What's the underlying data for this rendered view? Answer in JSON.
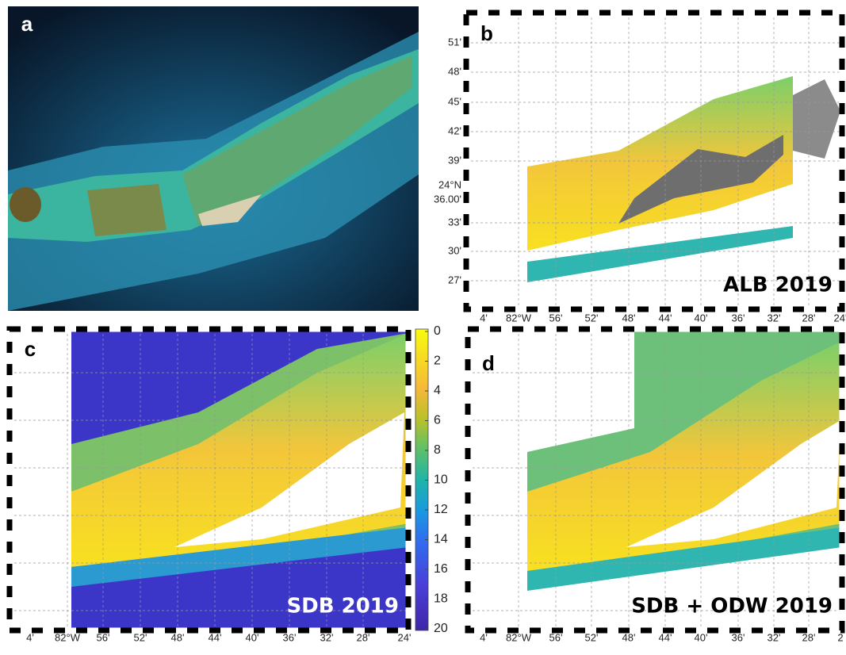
{
  "panels": [
    {
      "label": "a"
    },
    {
      "label": "b",
      "caption": "ALB 2019",
      "y_ticks": [
        "51'",
        "48'",
        "45'",
        "42'",
        "39'",
        "33'",
        "30'",
        "27'"
      ],
      "center_lat": [
        "24°N",
        "36.00'"
      ],
      "x_ticks": [
        "4'",
        "82°W",
        "56'",
        "52'",
        "48'",
        "44'",
        "40'",
        "36'",
        "32'",
        "28'",
        "24'"
      ]
    },
    {
      "label": "c",
      "caption": "SDB 2019",
      "x_ticks": [
        "4'",
        "82°W",
        "56'",
        "52'",
        "48'",
        "44'",
        "40'",
        "36'",
        "32'",
        "28'",
        "24'"
      ],
      "colorbar": {
        "lim": [
          0,
          20
        ],
        "ticks": [
          0,
          2,
          4,
          6,
          8,
          10,
          12,
          14,
          16,
          18,
          20
        ]
      }
    },
    {
      "label": "d",
      "caption": "SDB + ODW 2019",
      "x_ticks": [
        "4'",
        "82°W",
        "56'",
        "52'",
        "48'",
        "44'",
        "40'",
        "36'",
        "32'",
        "28'",
        "2"
      ]
    }
  ]
}
